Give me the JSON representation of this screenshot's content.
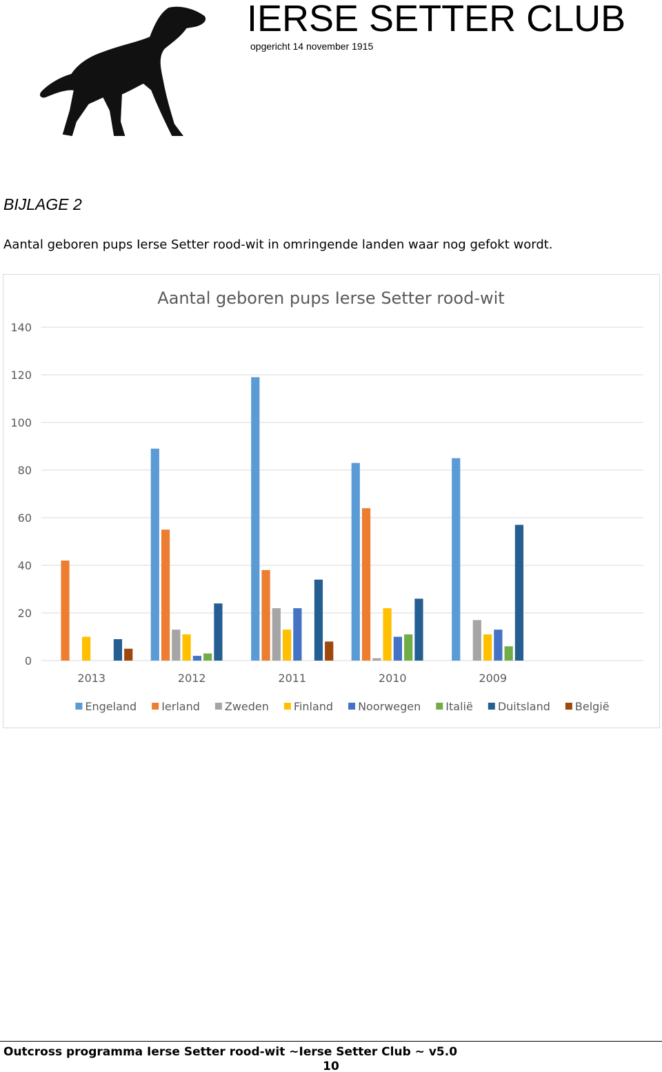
{
  "header": {
    "title": "IERSE SETTER CLUB",
    "subtitle": "opgericht 14 november 1915"
  },
  "section_title": "BIJLAGE 2",
  "intro": "Aantal geboren pups Ierse Setter rood-wit in omringende landen waar nog gefokt wordt.",
  "chart_data": {
    "type": "bar",
    "title": "Aantal geboren pups Ierse Setter rood-wit",
    "categories": [
      "2013",
      "2012",
      "2011",
      "2010",
      "2009",
      null
    ],
    "series": [
      {
        "name": "Engeland",
        "color": "#5b9bd5",
        "values": [
          0,
          89,
          119,
          83,
          85,
          null
        ]
      },
      {
        "name": "Ierland",
        "color": "#ed7d31",
        "values": [
          42,
          55,
          38,
          64,
          0,
          null
        ]
      },
      {
        "name": "Zweden",
        "color": "#a5a5a5",
        "values": [
          0,
          13,
          22,
          1,
          17,
          null
        ]
      },
      {
        "name": "Finland",
        "color": "#ffc000",
        "values": [
          10,
          11,
          13,
          22,
          11,
          null
        ]
      },
      {
        "name": "Noorwegen",
        "color": "#4472c4",
        "values": [
          0,
          2,
          22,
          10,
          13,
          null
        ]
      },
      {
        "name": "Italië",
        "color": "#70ad47",
        "values": [
          0,
          3,
          0,
          11,
          6,
          null
        ]
      },
      {
        "name": "Duitsland",
        "color": "#255e91",
        "values": [
          9,
          24,
          34,
          26,
          57,
          null
        ]
      },
      {
        "name": "België",
        "color": "#9e480e",
        "values": [
          5,
          0,
          8,
          0,
          0,
          null
        ]
      }
    ],
    "ylim": [
      0,
      140
    ],
    "yticks": [
      0,
      20,
      40,
      60,
      80,
      100,
      120,
      140
    ],
    "grid": true,
    "legend": "bottom"
  },
  "footer": {
    "text": "Outcross programma Ierse Setter rood-wit ~Ierse Setter Club ~ v5.0",
    "page_number": "10"
  }
}
